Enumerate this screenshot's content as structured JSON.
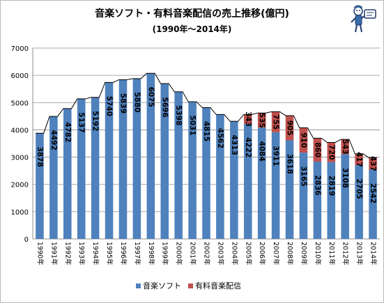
{
  "title": "音楽ソフト・有料音楽配信の売上推移(億円)",
  "subtitle": "(1990年～2014年)",
  "colors": {
    "soft": "#4f81bd",
    "download": "#c0504d"
  },
  "chart_data": {
    "type": "bar",
    "stacked": true,
    "categories": [
      "1990年",
      "1991年",
      "1992年",
      "1993年",
      "1994年",
      "1995年",
      "1996年",
      "1997年",
      "1998年",
      "1999年",
      "2000年",
      "2001年",
      "2002年",
      "2003年",
      "2004年",
      "2005年",
      "2006年",
      "2007年",
      "2008年",
      "2009年",
      "2010年",
      "2011年",
      "2012年",
      "2013年",
      "2014年"
    ],
    "series": [
      {
        "name": "音楽ソフト",
        "values": [
          3878,
          4492,
          4782,
          5137,
          5192,
          5740,
          5839,
          5880,
          6075,
          5696,
          5398,
          5031,
          4815,
          4562,
          4313,
          4222,
          4084,
          3911,
          3618,
          3165,
          2836,
          2819,
          3108,
          2705,
          2542
        ]
      },
      {
        "name": "有料音楽配信",
        "values": [
          null,
          null,
          null,
          null,
          null,
          null,
          null,
          null,
          null,
          null,
          null,
          null,
          null,
          null,
          null,
          343,
          535,
          755,
          905,
          910,
          860,
          720,
          543,
          417,
          437
        ]
      }
    ],
    "total_line": true,
    "ylim": [
      0,
      7000
    ],
    "yticks": [
      "0",
      "1000",
      "2000",
      "3000",
      "4000",
      "5000",
      "6000",
      "7000"
    ],
    "grid": true,
    "legend": "bottom"
  }
}
